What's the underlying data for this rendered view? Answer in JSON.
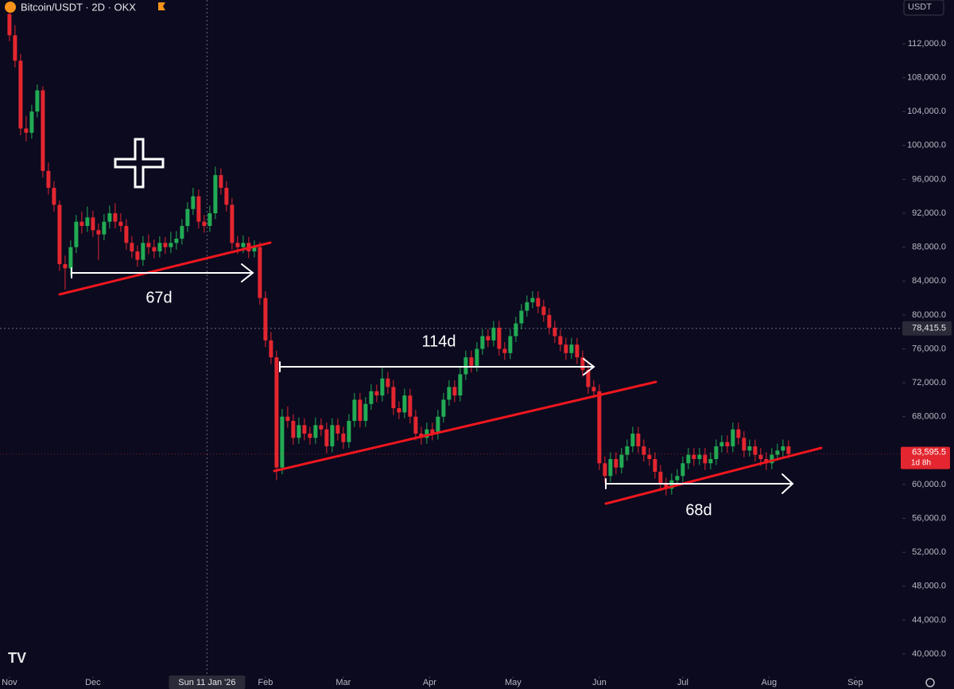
{
  "chart_data": {
    "type": "candlestick",
    "title": "Bitcoin/USDT · 2D · OKX",
    "currency": "USDT",
    "up_color": "#22ab54",
    "down_color": "#e3262f",
    "x": [
      0,
      2,
      4,
      6,
      8,
      10,
      12,
      14,
      16,
      18,
      20,
      22,
      24,
      26,
      28,
      30,
      32,
      34,
      36,
      38,
      40,
      42,
      44,
      46,
      48,
      50,
      52,
      54,
      56,
      58,
      60,
      62,
      64,
      66,
      68,
      70,
      72,
      74,
      76,
      78,
      80,
      82,
      84,
      86,
      88,
      90,
      92,
      94,
      96,
      98,
      100,
      102,
      104,
      106,
      108,
      110,
      112,
      114,
      116,
      118,
      120,
      122,
      124,
      126,
      128,
      130,
      132,
      134,
      136,
      138,
      140,
      142,
      144,
      146,
      148,
      150,
      152,
      154,
      156,
      158,
      160,
      162,
      164,
      166,
      168,
      170,
      172,
      174,
      176,
      178,
      180,
      182,
      184,
      186,
      188,
      190,
      192,
      194,
      196,
      198,
      200,
      202,
      204,
      206,
      208,
      210,
      212,
      214,
      216,
      218,
      220,
      222,
      224,
      226,
      228,
      230,
      232,
      234,
      236,
      238,
      240,
      242,
      244,
      246,
      248,
      250,
      252,
      254,
      256,
      258,
      260,
      262,
      264,
      266,
      268,
      270,
      272,
      274,
      276,
      278,
      280
    ],
    "ohlc": [
      [
        115500,
        116800,
        112300,
        113000
      ],
      [
        113000,
        114200,
        109200,
        110000
      ],
      [
        110000,
        110800,
        101200,
        102000
      ],
      [
        102000,
        103500,
        100500,
        101500
      ],
      [
        101500,
        104800,
        100800,
        104000
      ],
      [
        104000,
        107200,
        103300,
        106500
      ],
      [
        106500,
        107000,
        96200,
        97000
      ],
      [
        97000,
        98000,
        94200,
        95000
      ],
      [
        95000,
        95800,
        92200,
        93000
      ],
      [
        93000,
        93500,
        85200,
        86000
      ],
      [
        86000,
        87000,
        83000,
        85500
      ],
      [
        85500,
        88800,
        84700,
        88000
      ],
      [
        88000,
        91800,
        87300,
        91000
      ],
      [
        91000,
        92200,
        89600,
        90500
      ],
      [
        90500,
        92800,
        89800,
        91500
      ],
      [
        91500,
        92300,
        89200,
        90000
      ],
      [
        90000,
        90800,
        86500,
        89500
      ],
      [
        89500,
        91900,
        88800,
        91000
      ],
      [
        91000,
        92900,
        90200,
        92000
      ],
      [
        92000,
        93200,
        90200,
        91000
      ],
      [
        91000,
        92000,
        89800,
        90500
      ],
      [
        90500,
        91300,
        87700,
        88500
      ],
      [
        88500,
        89300,
        86700,
        87500
      ],
      [
        87500,
        88200,
        85700,
        86500
      ],
      [
        86500,
        89300,
        85800,
        88500
      ],
      [
        88500,
        89500,
        87200,
        88000
      ],
      [
        88000,
        88900,
        86700,
        87500
      ],
      [
        87500,
        89300,
        86800,
        88500
      ],
      [
        88500,
        89200,
        87200,
        88000
      ],
      [
        88000,
        89800,
        87300,
        88500
      ],
      [
        88500,
        89900,
        87700,
        89000
      ],
      [
        89000,
        91300,
        88300,
        90500
      ],
      [
        90500,
        93300,
        89800,
        92500
      ],
      [
        92500,
        95000,
        91800,
        94000
      ],
      [
        94000,
        94800,
        90200,
        91000
      ],
      [
        91000,
        91800,
        89700,
        90500
      ],
      [
        90500,
        92900,
        89800,
        92000
      ],
      [
        92000,
        97500,
        91300,
        96500
      ],
      [
        96500,
        97300,
        94200,
        95000
      ],
      [
        95000,
        95800,
        92200,
        93000
      ],
      [
        93000,
        93800,
        87700,
        88500
      ],
      [
        88500,
        89300,
        87200,
        88000
      ],
      [
        88000,
        89400,
        87300,
        88500
      ],
      [
        88500,
        89200,
        86700,
        87500
      ],
      [
        87500,
        88800,
        86800,
        88000
      ],
      [
        88000,
        88600,
        81200,
        82000
      ],
      [
        82000,
        82800,
        76200,
        77000
      ],
      [
        77000,
        78000,
        74200,
        75000
      ],
      [
        75000,
        75800,
        60500,
        62000
      ],
      [
        62000,
        68900,
        61200,
        68000
      ],
      [
        68000,
        69200,
        66700,
        67500
      ],
      [
        67500,
        68300,
        64700,
        65500
      ],
      [
        65500,
        67900,
        64800,
        67000
      ],
      [
        67000,
        67800,
        65200,
        66000
      ],
      [
        66000,
        66800,
        64700,
        65500
      ],
      [
        65500,
        67900,
        64800,
        67000
      ],
      [
        67000,
        67800,
        65700,
        66500
      ],
      [
        66500,
        67300,
        63700,
        64500
      ],
      [
        64500,
        67800,
        63800,
        67000
      ],
      [
        67000,
        67800,
        65200,
        66000
      ],
      [
        66000,
        66800,
        64200,
        65000
      ],
      [
        65000,
        68300,
        64300,
        67500
      ],
      [
        67500,
        70800,
        66800,
        70000
      ],
      [
        70000,
        70800,
        66700,
        67500
      ],
      [
        67500,
        70300,
        66800,
        69500
      ],
      [
        69500,
        71800,
        68800,
        71000
      ],
      [
        71000,
        71800,
        69700,
        70500
      ],
      [
        70500,
        73800,
        69800,
        72500
      ],
      [
        72500,
        73300,
        70700,
        71500
      ],
      [
        71500,
        72300,
        68200,
        69000
      ],
      [
        69000,
        69800,
        67700,
        68500
      ],
      [
        68500,
        71300,
        67800,
        70500
      ],
      [
        70500,
        71300,
        67200,
        68000
      ],
      [
        68000,
        68800,
        65200,
        66000
      ],
      [
        66000,
        66800,
        64700,
        65500
      ],
      [
        65500,
        67300,
        64800,
        66500
      ],
      [
        66500,
        67300,
        65200,
        66000
      ],
      [
        66000,
        68800,
        65300,
        68000
      ],
      [
        68000,
        70800,
        67300,
        70000
      ],
      [
        70000,
        72300,
        69300,
        71500
      ],
      [
        71500,
        72300,
        69700,
        70500
      ],
      [
        70500,
        73800,
        69800,
        73000
      ],
      [
        73000,
        75800,
        72300,
        75000
      ],
      [
        75000,
        75800,
        73200,
        74000
      ],
      [
        74000,
        76800,
        73300,
        76000
      ],
      [
        76000,
        78300,
        75300,
        77500
      ],
      [
        77500,
        78300,
        76200,
        77000
      ],
      [
        77000,
        79300,
        76300,
        78500
      ],
      [
        78500,
        79300,
        75200,
        76000
      ],
      [
        76000,
        76800,
        74700,
        75500
      ],
      [
        75500,
        78300,
        74800,
        77500
      ],
      [
        77500,
        79800,
        76800,
        79000
      ],
      [
        79000,
        81300,
        78300,
        80500
      ],
      [
        80500,
        82300,
        79800,
        81500
      ],
      [
        81500,
        82800,
        80800,
        82000
      ],
      [
        82000,
        82800,
        80200,
        81000
      ],
      [
        81000,
        81800,
        79200,
        80000
      ],
      [
        80000,
        80800,
        77700,
        78500
      ],
      [
        78500,
        79300,
        76700,
        77500
      ],
      [
        77500,
        78300,
        75700,
        76500
      ],
      [
        76500,
        77300,
        74700,
        75500
      ],
      [
        75500,
        77300,
        74800,
        76500
      ],
      [
        76500,
        77300,
        74200,
        75000
      ],
      [
        75000,
        75800,
        72700,
        73500
      ],
      [
        73500,
        74300,
        70700,
        71500
      ],
      [
        71500,
        72300,
        70200,
        71000
      ],
      [
        71000,
        71800,
        61700,
        62500
      ],
      [
        62500,
        63300,
        60200,
        61000
      ],
      [
        61000,
        63800,
        60300,
        63000
      ],
      [
        63000,
        63800,
        61200,
        62000
      ],
      [
        62000,
        64300,
        61300,
        63500
      ],
      [
        63500,
        65300,
        62800,
        64500
      ],
      [
        64500,
        66800,
        63800,
        66000
      ],
      [
        66000,
        66800,
        63700,
        64500
      ],
      [
        64500,
        65300,
        62700,
        63500
      ],
      [
        63500,
        64300,
        62200,
        63000
      ],
      [
        63000,
        63800,
        60700,
        61500
      ],
      [
        61500,
        62300,
        59200,
        60000
      ],
      [
        60000,
        60800,
        58700,
        59500
      ],
      [
        59500,
        61300,
        58800,
        60500
      ],
      [
        60500,
        61800,
        59800,
        61000
      ],
      [
        61000,
        63300,
        60300,
        62500
      ],
      [
        62500,
        64300,
        61800,
        63500
      ],
      [
        63500,
        64300,
        62200,
        63000
      ],
      [
        63000,
        64300,
        62300,
        63500
      ],
      [
        63500,
        64300,
        61700,
        62500
      ],
      [
        62500,
        63800,
        61800,
        63000
      ],
      [
        63000,
        65300,
        62300,
        64500
      ],
      [
        64500,
        65800,
        63800,
        65000
      ],
      [
        65000,
        65800,
        63700,
        64500
      ],
      [
        64500,
        67300,
        63800,
        66500
      ],
      [
        66500,
        67300,
        64700,
        65500
      ],
      [
        65500,
        66300,
        63200,
        64000
      ],
      [
        64000,
        65300,
        63300,
        64500
      ],
      [
        64500,
        65300,
        62700,
        63500
      ],
      [
        63500,
        64300,
        62200,
        63000
      ],
      [
        63000,
        63800,
        61700,
        62500
      ],
      [
        62500,
        64300,
        61800,
        63500
      ],
      [
        63500,
        64800,
        62800,
        64000
      ],
      [
        64000,
        65300,
        63300,
        64500
      ],
      [
        64500,
        65200,
        63100,
        63595.5
      ]
    ],
    "last_price_label": "63,595.5",
    "countdown": "1d 8h",
    "xlim": [
      -3.4,
      320.9
    ],
    "xticks": [
      {
        "value": 0,
        "label": "Nov"
      },
      {
        "value": 30,
        "label": "Dec"
      },
      {
        "value": 92,
        "label": "Feb"
      },
      {
        "value": 120,
        "label": "Mar"
      },
      {
        "value": 151,
        "label": "Apr"
      },
      {
        "value": 181,
        "label": "May"
      },
      {
        "value": 212,
        "label": "Jun"
      },
      {
        "value": 242,
        "label": "Jul"
      },
      {
        "value": 273,
        "label": "Aug"
      },
      {
        "value": 304,
        "label": "Sep"
      }
    ],
    "ylim": [
      37370,
      117160
    ],
    "yticks": [
      {
        "value": 40000,
        "label": "40,000.0"
      },
      {
        "value": 44000,
        "label": "44,000.0"
      },
      {
        "value": 48000,
        "label": "48,000.0"
      },
      {
        "value": 52000,
        "label": "52,000.0"
      },
      {
        "value": 56000,
        "label": "56,000.0"
      },
      {
        "value": 60000,
        "label": "60,000.0"
      },
      {
        "value": 64000,
        "label": "64,000.0"
      },
      {
        "value": 68000,
        "label": "68,000.0"
      },
      {
        "value": 72000,
        "label": "72,000.0"
      },
      {
        "value": 76000,
        "label": "76,000.0"
      },
      {
        "value": 80000,
        "label": "80,000.0"
      },
      {
        "value": 84000,
        "label": "84,000.0"
      },
      {
        "value": 88000,
        "label": "88,000.0"
      },
      {
        "value": 92000,
        "label": "92,000.0"
      },
      {
        "value": 96000,
        "label": "96,000.0"
      },
      {
        "value": 100000,
        "label": "100,000.0"
      },
      {
        "value": 104000,
        "label": "104,000.0"
      },
      {
        "value": 108000,
        "label": "108,000.0"
      },
      {
        "value": 112000,
        "label": "112,000.0"
      }
    ],
    "crosshair": {
      "price": {
        "value": 78415.5,
        "label": "78,415.5"
      },
      "time": {
        "value": 71,
        "label": "Sun 11 Jan '26"
      }
    },
    "annotations": [
      "67d",
      "114d",
      "68d"
    ]
  }
}
